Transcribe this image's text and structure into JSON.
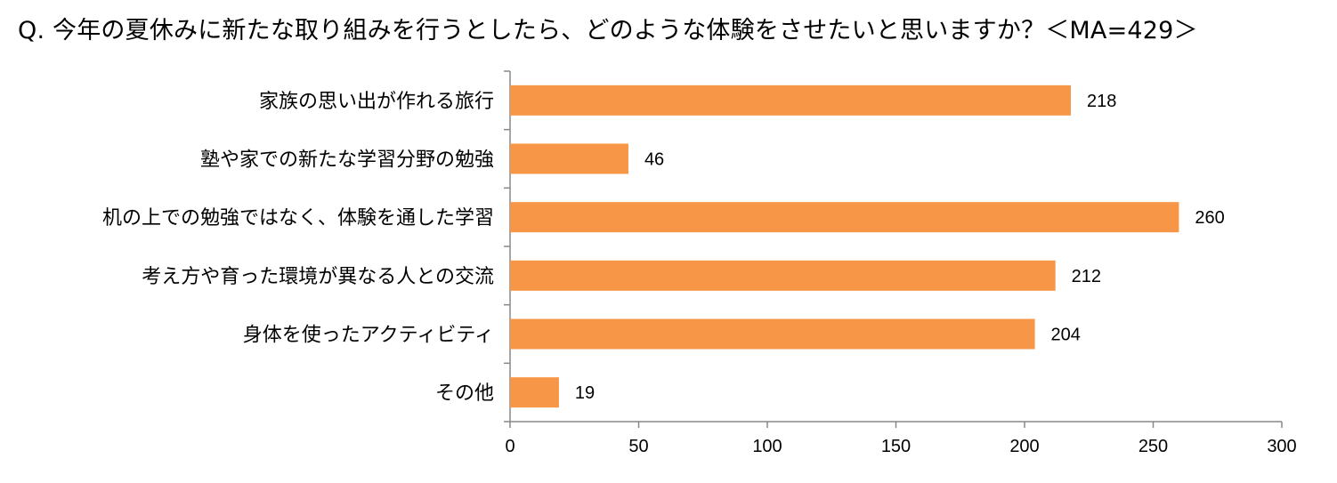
{
  "chart_data": {
    "type": "bar",
    "orientation": "horizontal",
    "title": "Q. 今年の夏休みに新たな取り組みを行うとしたら、どのような体験をさせたいと思いますか？＜MA=429＞",
    "categories": [
      "家族の思い出が作れる旅行",
      "塾や家での新たな学習分野の勉強",
      "机の上での勉強ではなく、体験を通した学習",
      "考え方や育った環境が異なる人との交流",
      "身体を使ったアクティビティ",
      "その他"
    ],
    "values": [
      218,
      46,
      260,
      212,
      204,
      19
    ],
    "xlabel": "",
    "ylabel": "",
    "xlim": [
      0,
      300
    ],
    "xticks": [
      0,
      50,
      100,
      150,
      200,
      250,
      300
    ],
    "bar_color": "#F79646",
    "grid": false,
    "legend": "none",
    "data_labels": true
  }
}
